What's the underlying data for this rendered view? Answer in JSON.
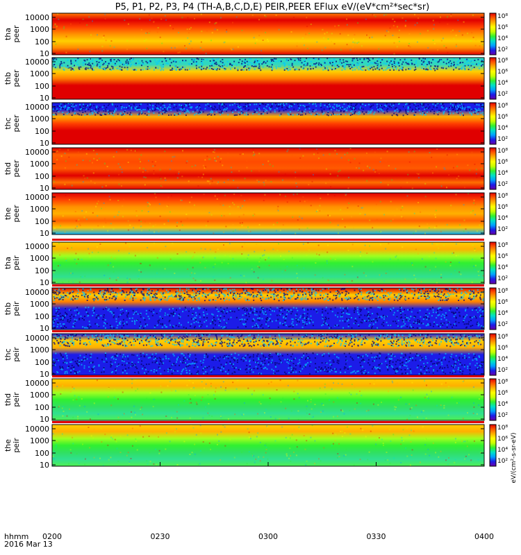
{
  "chart_data": {
    "type": "heatmap",
    "title": "P5, P1, P2, P3, P4 (TH-A,B,C,D,E) PEIR,PEER EFlux eV/(eV*cm²*sec*sr)",
    "x_axis": {
      "ticks": [
        "0200",
        "0230",
        "0300",
        "0330",
        "0400"
      ],
      "row_label": "hhmm",
      "date_label": "2016 Mar 13",
      "range": [
        "0200",
        "0400"
      ]
    },
    "y_scale": "log",
    "colorbar_label": "eV/(cm²-s-sr-eV)",
    "panels": [
      {
        "probe": "tha",
        "species": "peer",
        "label_line1": "tha",
        "label_line2": "peer",
        "yticks": [
          "10000",
          "1000",
          "100",
          "10"
        ],
        "cbar_ticks": [
          "10⁸",
          "10⁶",
          "10⁴",
          "10²"
        ]
      },
      {
        "probe": "thb",
        "species": "peer",
        "label_line1": "thb",
        "label_line2": "peer",
        "yticks": [
          "10000",
          "1000",
          "100",
          "10"
        ],
        "cbar_ticks": [
          "10⁸",
          "10⁶",
          "10⁴",
          "10²"
        ]
      },
      {
        "probe": "thc",
        "species": "peer",
        "label_line1": "thc",
        "label_line2": "peer",
        "yticks": [
          "10000",
          "1000",
          "100",
          "10"
        ],
        "cbar_ticks": [
          "10⁸",
          "10⁶",
          "10⁴",
          "10²"
        ]
      },
      {
        "probe": "thd",
        "species": "peer",
        "label_line1": "thd",
        "label_line2": "peer",
        "yticks": [
          "10000",
          "1000",
          "100",
          "10"
        ],
        "cbar_ticks": [
          "10⁸",
          "10⁶",
          "10⁴",
          "10²"
        ]
      },
      {
        "probe": "the",
        "species": "peer",
        "label_line1": "the",
        "label_line2": "peer",
        "yticks": [
          "10000",
          "1000",
          "100",
          "10"
        ],
        "cbar_ticks": [
          "10⁸",
          "10⁶",
          "10⁴",
          "10²"
        ]
      },
      {
        "probe": "tha",
        "species": "peir",
        "label_line1": "tha",
        "label_line2": "peir",
        "yticks": [
          "10000",
          "1000",
          "100",
          "10"
        ],
        "cbar_ticks": [
          "10⁸",
          "10⁶",
          "10⁴",
          "10²"
        ]
      },
      {
        "probe": "thb",
        "species": "peir",
        "label_line1": "thb",
        "label_line2": "peir",
        "yticks": [
          "10000",
          "1000",
          "100",
          "10"
        ],
        "cbar_ticks": [
          "10⁸",
          "10⁶",
          "10⁴",
          "10²"
        ]
      },
      {
        "probe": "thc",
        "species": "peir",
        "label_line1": "thc",
        "label_line2": "peir",
        "yticks": [
          "10000",
          "1000",
          "100",
          "10"
        ],
        "cbar_ticks": [
          "10⁸",
          "10⁶",
          "10⁴",
          "10²"
        ]
      },
      {
        "probe": "thd",
        "species": "peir",
        "label_line1": "thd",
        "label_line2": "peir",
        "yticks": [
          "10000",
          "1000",
          "100",
          "10"
        ],
        "cbar_ticks": [
          "10⁸",
          "10⁶",
          "10⁴",
          "10²"
        ]
      },
      {
        "probe": "the",
        "species": "peir",
        "label_line1": "the",
        "label_line2": "peir",
        "yticks": [
          "10000",
          "1000",
          "100",
          "10"
        ],
        "cbar_ticks": [
          "10⁸",
          "10⁶",
          "10⁴",
          "10²"
        ]
      }
    ]
  }
}
